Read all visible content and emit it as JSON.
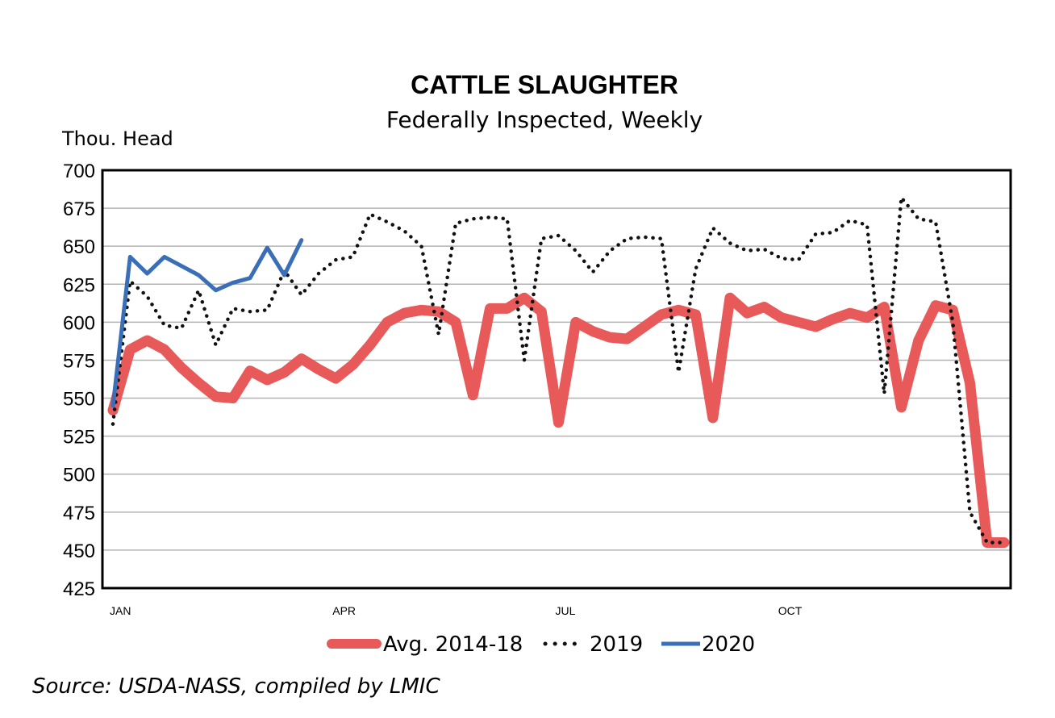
{
  "chart_data": {
    "type": "line",
    "title": "CATTLE SLAUGHTER",
    "subtitle": "Federally Inspected, Weekly",
    "ylabel": "Thou. Head",
    "ylim": [
      425,
      700
    ],
    "yticks": [
      425,
      450,
      475,
      500,
      525,
      550,
      575,
      600,
      625,
      650,
      675,
      700
    ],
    "xlim": [
      1,
      53
    ],
    "x_tick_labels": [
      {
        "label": "JAN",
        "week": 1
      },
      {
        "label": "APR",
        "week": 14
      },
      {
        "label": "JUL",
        "week": 27
      },
      {
        "label": "OCT",
        "week": 40
      }
    ],
    "grid": true,
    "legend_position": "bottom",
    "series": [
      {
        "name": "Avg. 2014-18",
        "style": "thick-solid",
        "color": "#e85a5a",
        "x": [
          1,
          2,
          3,
          4,
          5,
          6,
          7,
          8,
          9,
          10,
          11,
          12,
          13,
          14,
          15,
          16,
          17,
          18,
          19,
          20,
          21,
          22,
          23,
          24,
          25,
          26,
          27,
          28,
          29,
          30,
          31,
          32,
          33,
          34,
          35,
          36,
          37,
          38,
          39,
          40,
          41,
          42,
          43,
          44,
          45,
          46,
          47,
          48,
          49,
          50,
          51,
          52,
          53
        ],
        "values": [
          542,
          582,
          588,
          582,
          570,
          560,
          551,
          550,
          568,
          562,
          567,
          576,
          569,
          563,
          572,
          585,
          600,
          606,
          608,
          607,
          600,
          552,
          609,
          609,
          616,
          607,
          534,
          600,
          594,
          590,
          589,
          597,
          605,
          608,
          605,
          537,
          616,
          606,
          610,
          603,
          600,
          597,
          602,
          606,
          603,
          610,
          544,
          588,
          611,
          608,
          560,
          455,
          455
        ]
      },
      {
        "name": "2019",
        "style": "dotted",
        "color": "#111111",
        "x": [
          1,
          2,
          3,
          4,
          5,
          6,
          7,
          8,
          9,
          10,
          11,
          12,
          13,
          14,
          15,
          16,
          17,
          18,
          19,
          20,
          21,
          22,
          23,
          24,
          25,
          26,
          27,
          28,
          29,
          30,
          31,
          32,
          33,
          34,
          35,
          36,
          37,
          38,
          39,
          40,
          41,
          42,
          43,
          44,
          45,
          46,
          47,
          48,
          49,
          50,
          51,
          52,
          53
        ],
        "values": [
          533,
          627,
          617,
          598,
          596,
          621,
          585,
          609,
          607,
          608,
          634,
          618,
          632,
          641,
          643,
          671,
          666,
          660,
          650,
          592,
          665,
          668,
          669,
          668,
          575,
          655,
          657,
          647,
          633,
          647,
          655,
          656,
          655,
          567,
          635,
          662,
          652,
          647,
          648,
          642,
          641,
          658,
          659,
          667,
          664,
          553,
          682,
          668,
          666,
          600,
          475,
          455,
          455
        ]
      },
      {
        "name": "2020",
        "style": "solid",
        "color": "#3a6fb8",
        "x": [
          1,
          2,
          3,
          4,
          5,
          6,
          7,
          8,
          9,
          10,
          11,
          12
        ],
        "values": [
          545,
          643,
          632,
          643,
          637,
          631,
          621,
          626,
          629,
          649,
          631,
          654
        ]
      }
    ]
  },
  "source": "Source: USDA-NASS, compiled by LMIC"
}
